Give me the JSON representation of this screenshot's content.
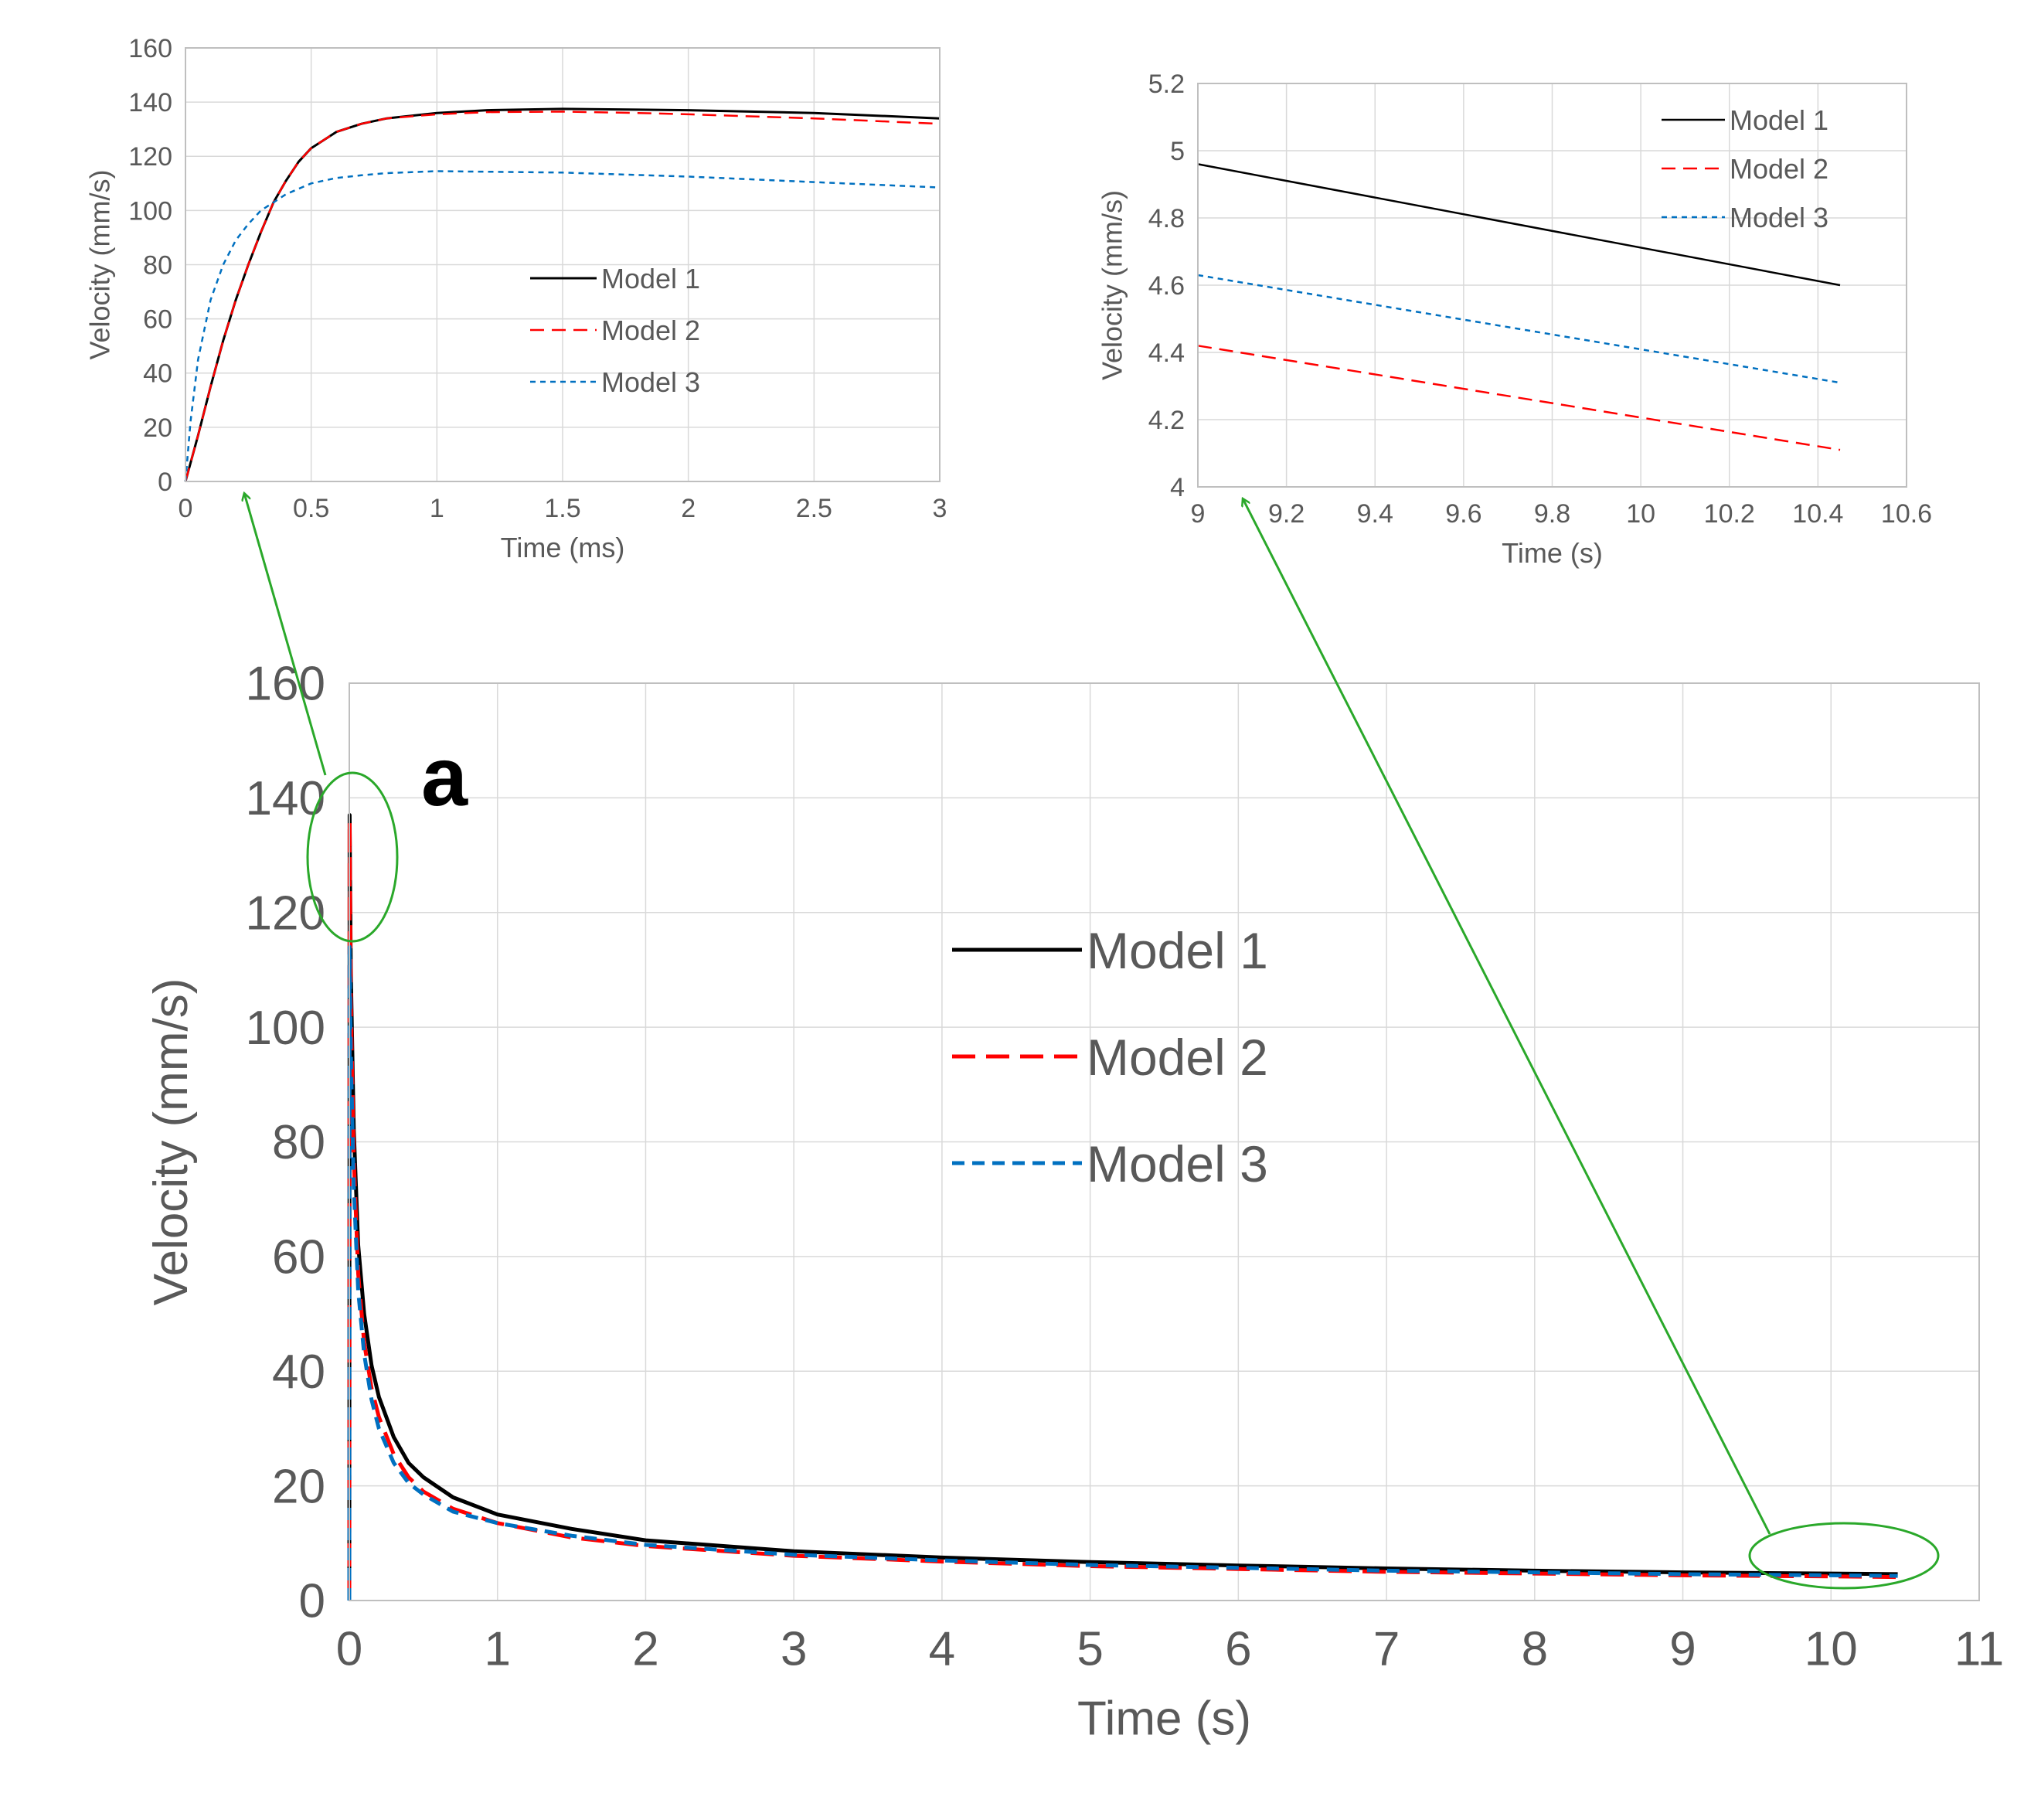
{
  "figure": {
    "panel_label": "a",
    "colors": {
      "model1": "#000000",
      "model2": "#ff0000",
      "model3": "#0070c0",
      "annotation": "#2aa82a"
    }
  },
  "chart_data": [
    {
      "id": "inset_early",
      "type": "line",
      "title": "",
      "xlabel": "Time (ms)",
      "ylabel": "Velocity (mm/s)",
      "xlim": [
        0,
        3
      ],
      "ylim": [
        0,
        160
      ],
      "xticks": [
        0,
        0.5,
        1,
        1.5,
        2,
        2.5,
        3
      ],
      "xtick_labels": [
        "0",
        "0.5",
        "1",
        "1.5",
        "2",
        "2.5",
        "3"
      ],
      "yticks": [
        0,
        20,
        40,
        60,
        80,
        100,
        120,
        140,
        160
      ],
      "ytick_labels": [
        "0",
        "20",
        "40",
        "60",
        "80",
        "100",
        "120",
        "140",
        "160"
      ],
      "legend": "center",
      "grid": true,
      "series": [
        {
          "name": "Model 1",
          "style": "solid",
          "x": [
            0,
            0.05,
            0.1,
            0.15,
            0.2,
            0.25,
            0.3,
            0.35,
            0.4,
            0.45,
            0.5,
            0.6,
            0.7,
            0.8,
            1.0,
            1.2,
            1.5,
            1.8,
            2.0,
            2.5,
            3.0
          ],
          "y": [
            0,
            17,
            35,
            52,
            67,
            80,
            92,
            103,
            111,
            118,
            123,
            129,
            132,
            134,
            136,
            137,
            137.5,
            137.2,
            137,
            136,
            134
          ]
        },
        {
          "name": "Model 2",
          "style": "dashed",
          "x": [
            0,
            0.05,
            0.1,
            0.15,
            0.2,
            0.25,
            0.3,
            0.35,
            0.4,
            0.45,
            0.5,
            0.6,
            0.7,
            0.8,
            1.0,
            1.2,
            1.5,
            1.8,
            2.0,
            2.5,
            3.0
          ],
          "y": [
            0,
            17,
            35,
            52,
            67,
            80,
            92,
            103,
            111,
            118,
            123,
            129,
            132,
            134,
            135.5,
            136.3,
            136.5,
            136,
            135.5,
            134,
            132
          ]
        },
        {
          "name": "Model 3",
          "style": "dotted",
          "x": [
            0,
            0.02,
            0.05,
            0.1,
            0.15,
            0.2,
            0.25,
            0.3,
            0.35,
            0.4,
            0.5,
            0.6,
            0.7,
            0.8,
            1.0,
            1.5,
            2.0,
            2.5,
            3.0
          ],
          "y": [
            0,
            22,
            45,
            67,
            80,
            89,
            95,
            100,
            103,
            106,
            110,
            112,
            113,
            113.8,
            114.5,
            114,
            112.5,
            110.5,
            108.5
          ]
        }
      ]
    },
    {
      "id": "inset_late",
      "type": "line",
      "title": "",
      "xlabel": "Time (s)",
      "ylabel": "Velocity (mm/s)",
      "xlim": [
        9,
        10.6
      ],
      "ylim": [
        4,
        5.2
      ],
      "xticks": [
        9,
        9.2,
        9.4,
        9.6,
        9.8,
        10,
        10.2,
        10.4,
        10.6
      ],
      "xtick_labels": [
        "9",
        "9.2",
        "9.4",
        "9.6",
        "9.8",
        "10",
        "10.2",
        "10.4",
        "10.6"
      ],
      "yticks": [
        4,
        4.2,
        4.4,
        4.6,
        4.8,
        5,
        5.2
      ],
      "ytick_labels": [
        "4",
        "4.2",
        "4.4",
        "4.6",
        "4.8",
        "5",
        "5.2"
      ],
      "legend": "top-right",
      "grid": true,
      "series": [
        {
          "name": "Model 1",
          "style": "solid",
          "x": [
            9,
            10.45
          ],
          "y": [
            4.96,
            4.6
          ]
        },
        {
          "name": "Model 2",
          "style": "dashed",
          "x": [
            9,
            10.45
          ],
          "y": [
            4.42,
            4.11
          ]
        },
        {
          "name": "Model 3",
          "style": "dotted",
          "x": [
            9,
            10.45
          ],
          "y": [
            4.63,
            4.31
          ]
        }
      ]
    },
    {
      "id": "main",
      "type": "line",
      "title": "",
      "xlabel": "Time (s)",
      "ylabel": "Velocity (mm/s)",
      "xlim": [
        0,
        11
      ],
      "ylim": [
        0,
        160
      ],
      "xticks": [
        0,
        1,
        2,
        3,
        4,
        5,
        6,
        7,
        8,
        9,
        10,
        11
      ],
      "xtick_labels": [
        "0",
        "1",
        "2",
        "3",
        "4",
        "5",
        "6",
        "7",
        "8",
        "9",
        "10",
        "11"
      ],
      "yticks": [
        0,
        20,
        40,
        60,
        80,
        100,
        120,
        140,
        160
      ],
      "ytick_labels": [
        "0",
        "20",
        "40",
        "60",
        "80",
        "100",
        "120",
        "140",
        "160"
      ],
      "legend": "center",
      "grid": true,
      "series": [
        {
          "name": "Model 1",
          "style": "solid",
          "x": [
            0,
            0.002,
            0.01,
            0.03,
            0.06,
            0.1,
            0.15,
            0.2,
            0.3,
            0.4,
            0.5,
            0.7,
            1.0,
            1.5,
            2,
            3,
            4,
            5,
            6,
            7,
            8,
            9,
            10,
            10.45
          ],
          "y": [
            0,
            137,
            110,
            82,
            62,
            50,
            41,
            35.5,
            28.5,
            24,
            21.5,
            18,
            15,
            12.5,
            10.5,
            8.6,
            7.5,
            6.7,
            6.1,
            5.6,
            5.2,
            4.9,
            4.7,
            4.6
          ]
        },
        {
          "name": "Model 2",
          "style": "dashed",
          "x": [
            0,
            0.002,
            0.01,
            0.03,
            0.06,
            0.1,
            0.15,
            0.2,
            0.3,
            0.4,
            0.5,
            0.7,
            1.0,
            1.5,
            2,
            3,
            4,
            5,
            6,
            7,
            8,
            9,
            10,
            10.45
          ],
          "y": [
            0,
            136,
            105,
            77,
            57,
            45,
            37,
            32,
            25.5,
            21.5,
            19,
            16,
            13.5,
            11,
            9.5,
            7.8,
            6.8,
            6.0,
            5.5,
            5.0,
            4.7,
            4.4,
            4.2,
            4.1
          ]
        },
        {
          "name": "Model 3",
          "style": "dotted",
          "x": [
            0,
            0.002,
            0.01,
            0.03,
            0.06,
            0.1,
            0.15,
            0.2,
            0.3,
            0.4,
            0.5,
            0.7,
            1.0,
            1.5,
            2,
            3,
            4,
            5,
            6,
            7,
            8,
            9,
            10,
            10.45
          ],
          "y": [
            0,
            114,
            96,
            72,
            54,
            43,
            35,
            30,
            24,
            20.5,
            18.5,
            15.5,
            13.5,
            11.3,
            9.7,
            8.0,
            7.0,
            6.2,
            5.7,
            5.2,
            4.9,
            4.6,
            4.4,
            4.3
          ]
        }
      ]
    }
  ]
}
